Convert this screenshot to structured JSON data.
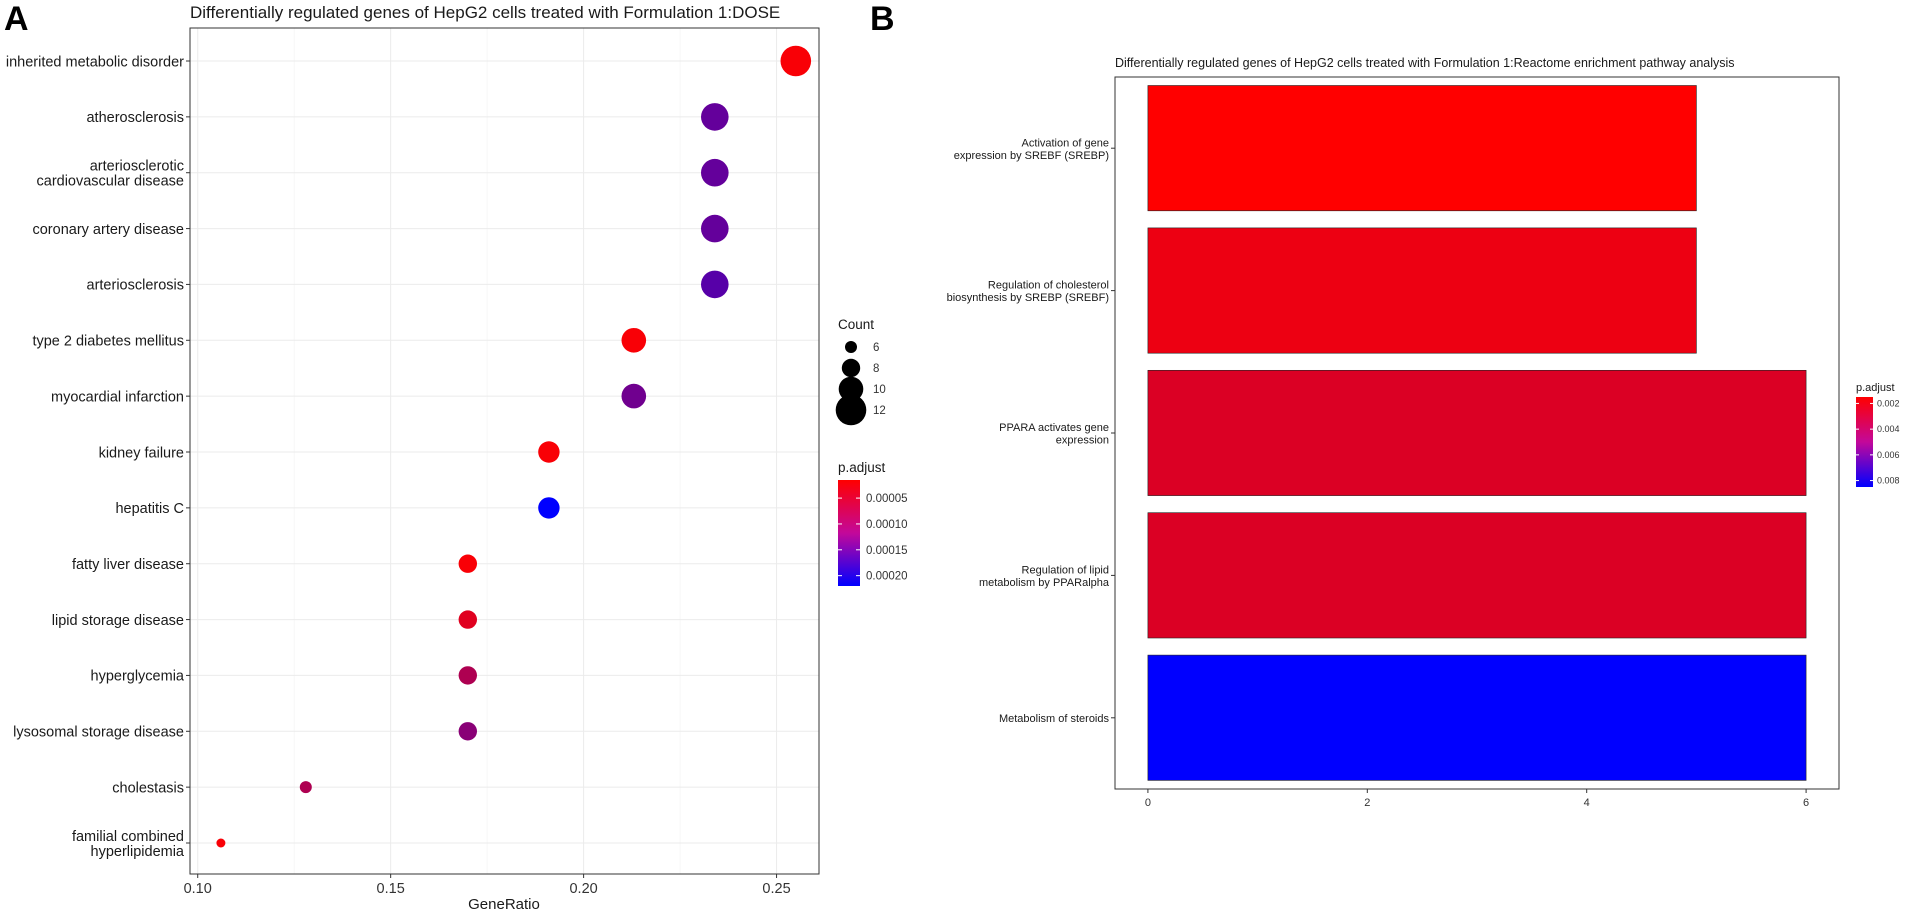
{
  "panels": {
    "a_letter": "A",
    "b_letter": "B"
  },
  "colors": {
    "low_padj": "#ff0000",
    "high_padj": "#0000ff",
    "grid": "#ebebeb",
    "axis_box": "#333333"
  },
  "chart_data": [
    {
      "type": "scatter",
      "panel": "A",
      "title": "Differentially regulated genes of HepG2 cells treated with Formulation 1:DOSE",
      "xlabel": "GeneRatio",
      "ylabel": "",
      "xlim": [
        0.098,
        0.261
      ],
      "xticks": [
        0.1,
        0.15,
        0.2,
        0.25
      ],
      "xtick_labels": [
        "0.10",
        "0.15",
        "0.20",
        "0.25"
      ],
      "grid": true,
      "points": [
        {
          "label": "inherited metabolic disorder",
          "gene_ratio": 0.255,
          "count": 12,
          "p_adjust": 2e-05
        },
        {
          "label": "atherosclerosis",
          "gene_ratio": 0.234,
          "count": 11,
          "p_adjust": 0.00014
        },
        {
          "label": "arteriosclerotic cardiovascular disease",
          "gene_ratio": 0.234,
          "count": 11,
          "p_adjust": 0.00014
        },
        {
          "label": "coronary artery disease",
          "gene_ratio": 0.234,
          "count": 11,
          "p_adjust": 0.00014
        },
        {
          "label": "arteriosclerosis",
          "gene_ratio": 0.234,
          "count": 11,
          "p_adjust": 0.00015
        },
        {
          "label": "type 2 diabetes mellitus",
          "gene_ratio": 0.213,
          "count": 10,
          "p_adjust": 2e-05
        },
        {
          "label": "myocardial infarction",
          "gene_ratio": 0.213,
          "count": 10,
          "p_adjust": 0.00013
        },
        {
          "label": "kidney failure",
          "gene_ratio": 0.191,
          "count": 9,
          "p_adjust": 2e-05
        },
        {
          "label": "hepatitis C",
          "gene_ratio": 0.191,
          "count": 9,
          "p_adjust": 0.00022
        },
        {
          "label": "fatty liver disease",
          "gene_ratio": 0.17,
          "count": 8,
          "p_adjust": 2e-05
        },
        {
          "label": "lipid storage disease",
          "gene_ratio": 0.17,
          "count": 8,
          "p_adjust": 4e-05
        },
        {
          "label": "hyperglycemia",
          "gene_ratio": 0.17,
          "count": 8,
          "p_adjust": 8e-05
        },
        {
          "label": "lysosomal storage disease",
          "gene_ratio": 0.17,
          "count": 8,
          "p_adjust": 0.00011
        },
        {
          "label": "cholestasis",
          "gene_ratio": 0.128,
          "count": 6,
          "p_adjust": 8e-05
        },
        {
          "label": "familial combined hyperlipidemia",
          "gene_ratio": 0.106,
          "count": 5,
          "p_adjust": 2e-05
        }
      ],
      "ytick_labels": [
        [
          "inherited metabolic disorder"
        ],
        [
          "atherosclerosis"
        ],
        [
          "arteriosclerotic",
          "cardiovascular disease"
        ],
        [
          "coronary artery disease"
        ],
        [
          "arteriosclerosis"
        ],
        [
          "type 2 diabetes mellitus"
        ],
        [
          "myocardial infarction"
        ],
        [
          "kidney failure"
        ],
        [
          "hepatitis C"
        ],
        [
          "fatty liver disease"
        ],
        [
          "lipid storage disease"
        ],
        [
          "hyperglycemia"
        ],
        [
          "lysosomal storage disease"
        ],
        [
          "cholestasis"
        ],
        [
          "familial combined",
          "hyperlipidemia"
        ]
      ],
      "size_legend": {
        "title": "Count",
        "values": [
          6,
          8,
          10,
          12
        ],
        "labels": [
          "6",
          "8",
          "10",
          "12"
        ]
      },
      "color_legend": {
        "title": "p.adjust",
        "range": [
          1.5e-05,
          0.00022
        ],
        "ticks": [
          5e-05,
          0.0001,
          0.00015,
          0.0002
        ],
        "tick_labels": [
          "0.00005",
          "0.00010",
          "0.00015",
          "0.00020"
        ]
      }
    },
    {
      "type": "bar",
      "orientation": "horizontal",
      "panel": "B",
      "title": "Differentially regulated genes of HepG2 cells treated with Formulation 1:Reactome enrichment pathway analysis",
      "xlabel": "",
      "ylabel": "",
      "xlim": [
        -0.3,
        6.3
      ],
      "xticks": [
        0,
        2,
        4,
        6
      ],
      "xtick_labels": [
        "0",
        "2",
        "4",
        "6"
      ],
      "grid": false,
      "bars": [
        {
          "label": "Activation of gene expression by SREBF (SREBP)",
          "value": 5,
          "p_adjust": 0.0015
        },
        {
          "label": "Regulation of cholesterol biosynthesis by SREBP (SREBF)",
          "value": 5,
          "p_adjust": 0.002
        },
        {
          "label": "PPARA activates gene expression",
          "value": 6,
          "p_adjust": 0.0025
        },
        {
          "label": "Regulation of lipid metabolism by PPARalpha",
          "value": 6,
          "p_adjust": 0.0025
        },
        {
          "label": "Metabolism of steroids",
          "value": 6,
          "p_adjust": 0.0085
        }
      ],
      "ytick_labels": [
        [
          "Activation of gene",
          "expression by SREBF (SREBP)"
        ],
        [
          "Regulation of cholesterol",
          "biosynthesis by SREBP (SREBF)"
        ],
        [
          "PPARA activates gene",
          "expression"
        ],
        [
          "Regulation of lipid",
          "metabolism by PPARalpha"
        ],
        [
          "Metabolism of steroids"
        ]
      ],
      "color_legend": {
        "title": "p.adjust",
        "range": [
          0.0015,
          0.0085
        ],
        "ticks": [
          0.002,
          0.004,
          0.006,
          0.008
        ],
        "tick_labels": [
          "0.002",
          "0.004",
          "0.006",
          "0.008"
        ]
      }
    }
  ]
}
